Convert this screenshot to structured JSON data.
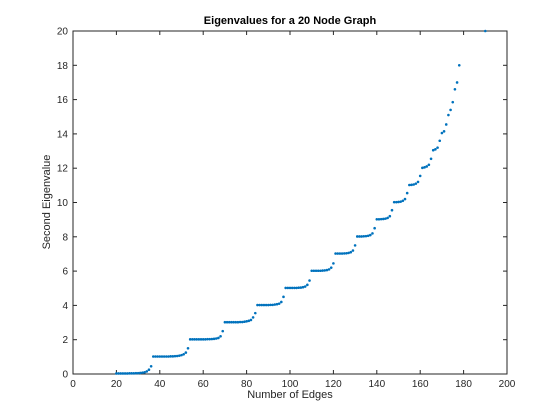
{
  "chart_data": {
    "type": "scatter",
    "title": "Eigenvalues for a 20 Node Graph",
    "xlabel": "Number of Edges",
    "ylabel": "Second Eigenvalue",
    "xlim": [
      0,
      200
    ],
    "ylim": [
      0,
      20
    ],
    "xticks": [
      0,
      20,
      40,
      60,
      80,
      100,
      120,
      140,
      160,
      180,
      200
    ],
    "yticks": [
      0,
      2,
      4,
      6,
      8,
      10,
      12,
      14,
      16,
      18,
      20
    ],
    "grid": false,
    "marker_color": "#0072BD",
    "series": [
      {
        "points": [
          [
            20,
            0.03
          ],
          [
            21,
            0.03
          ],
          [
            22,
            0.03
          ],
          [
            23,
            0.03
          ],
          [
            24,
            0.03
          ],
          [
            25,
            0.03
          ],
          [
            26,
            0.04
          ],
          [
            27,
            0.04
          ],
          [
            28,
            0.04
          ],
          [
            29,
            0.05
          ],
          [
            30,
            0.05
          ],
          [
            31,
            0.06
          ],
          [
            32,
            0.08
          ],
          [
            33,
            0.1
          ],
          [
            34,
            0.15
          ],
          [
            35,
            0.25
          ],
          [
            36,
            0.45
          ],
          [
            37,
            1.02
          ],
          [
            38,
            1.02
          ],
          [
            39,
            1.02
          ],
          [
            40,
            1.02
          ],
          [
            41,
            1.02
          ],
          [
            42,
            1.02
          ],
          [
            43,
            1.02
          ],
          [
            44,
            1.02
          ],
          [
            45,
            1.03
          ],
          [
            46,
            1.03
          ],
          [
            47,
            1.04
          ],
          [
            48,
            1.05
          ],
          [
            49,
            1.07
          ],
          [
            50,
            1.1
          ],
          [
            51,
            1.15
          ],
          [
            52,
            1.25
          ],
          [
            53,
            1.5
          ],
          [
            54,
            2.02
          ],
          [
            55,
            2.02
          ],
          [
            56,
            2.02
          ],
          [
            57,
            2.02
          ],
          [
            58,
            2.02
          ],
          [
            59,
            2.02
          ],
          [
            60,
            2.02
          ],
          [
            61,
            2.02
          ],
          [
            62,
            2.03
          ],
          [
            63,
            2.03
          ],
          [
            64,
            2.04
          ],
          [
            65,
            2.05
          ],
          [
            66,
            2.07
          ],
          [
            67,
            2.1
          ],
          [
            68,
            2.2
          ],
          [
            69,
            2.5
          ],
          [
            70,
            3.02
          ],
          [
            71,
            3.02
          ],
          [
            72,
            3.02
          ],
          [
            73,
            3.02
          ],
          [
            74,
            3.02
          ],
          [
            75,
            3.02
          ],
          [
            76,
            3.02
          ],
          [
            77,
            3.03
          ],
          [
            78,
            3.03
          ],
          [
            79,
            3.05
          ],
          [
            80,
            3.07
          ],
          [
            81,
            3.1
          ],
          [
            82,
            3.15
          ],
          [
            83,
            3.3
          ],
          [
            84,
            3.55
          ],
          [
            85,
            4.02
          ],
          [
            86,
            4.02
          ],
          [
            87,
            4.02
          ],
          [
            88,
            4.02
          ],
          [
            89,
            4.02
          ],
          [
            90,
            4.02
          ],
          [
            91,
            4.03
          ],
          [
            92,
            4.03
          ],
          [
            93,
            4.05
          ],
          [
            94,
            4.07
          ],
          [
            95,
            4.1
          ],
          [
            96,
            4.2
          ],
          [
            97,
            4.5
          ],
          [
            98,
            5.02
          ],
          [
            99,
            5.02
          ],
          [
            100,
            5.02
          ],
          [
            101,
            5.02
          ],
          [
            102,
            5.02
          ],
          [
            103,
            5.02
          ],
          [
            104,
            5.03
          ],
          [
            105,
            5.04
          ],
          [
            106,
            5.06
          ],
          [
            107,
            5.1
          ],
          [
            108,
            5.2
          ],
          [
            109,
            5.45
          ],
          [
            110,
            6.02
          ],
          [
            111,
            6.02
          ],
          [
            112,
            6.02
          ],
          [
            113,
            6.02
          ],
          [
            114,
            6.02
          ],
          [
            115,
            6.03
          ],
          [
            116,
            6.04
          ],
          [
            117,
            6.06
          ],
          [
            118,
            6.1
          ],
          [
            119,
            6.2
          ],
          [
            120,
            6.45
          ],
          [
            121,
            7.02
          ],
          [
            122,
            7.02
          ],
          [
            123,
            7.02
          ],
          [
            124,
            7.02
          ],
          [
            125,
            7.03
          ],
          [
            126,
            7.04
          ],
          [
            127,
            7.06
          ],
          [
            128,
            7.1
          ],
          [
            129,
            7.2
          ],
          [
            130,
            7.5
          ],
          [
            131,
            8.02
          ],
          [
            132,
            8.02
          ],
          [
            133,
            8.02
          ],
          [
            134,
            8.03
          ],
          [
            135,
            8.04
          ],
          [
            136,
            8.06
          ],
          [
            137,
            8.1
          ],
          [
            138,
            8.2
          ],
          [
            139,
            8.5
          ],
          [
            140,
            9.02
          ],
          [
            141,
            9.02
          ],
          [
            142,
            9.03
          ],
          [
            143,
            9.04
          ],
          [
            144,
            9.06
          ],
          [
            145,
            9.1
          ],
          [
            146,
            9.2
          ],
          [
            147,
            9.55
          ],
          [
            148,
            10.02
          ],
          [
            149,
            10.02
          ],
          [
            150,
            10.03
          ],
          [
            151,
            10.05
          ],
          [
            152,
            10.1
          ],
          [
            153,
            10.2
          ],
          [
            154,
            10.55
          ],
          [
            155,
            11.02
          ],
          [
            156,
            11.03
          ],
          [
            157,
            11.05
          ],
          [
            158,
            11.1
          ],
          [
            159,
            11.2
          ],
          [
            160,
            11.55
          ],
          [
            161,
            12.02
          ],
          [
            162,
            12.05
          ],
          [
            163,
            12.1
          ],
          [
            164,
            12.2
          ],
          [
            165,
            12.55
          ],
          [
            166,
            13.05
          ],
          [
            167,
            13.1
          ],
          [
            168,
            13.2
          ],
          [
            169,
            13.6
          ],
          [
            170,
            14.05
          ],
          [
            171,
            14.15
          ],
          [
            172,
            14.55
          ],
          [
            173,
            15.1
          ],
          [
            174,
            15.4
          ],
          [
            175,
            15.85
          ],
          [
            176,
            16.6
          ],
          [
            177,
            17
          ],
          [
            178,
            18
          ],
          [
            190,
            20
          ]
        ]
      }
    ]
  }
}
